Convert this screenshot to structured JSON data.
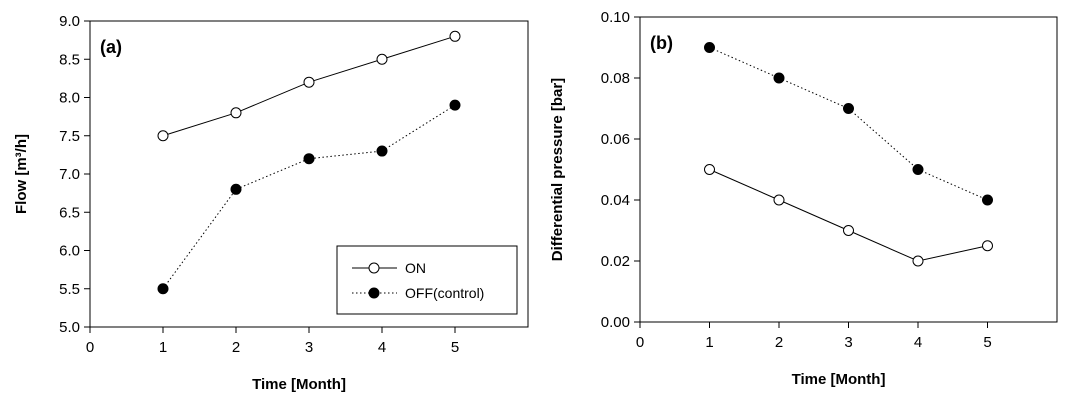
{
  "chart_data": [
    {
      "type": "line",
      "panel_label": "(a)",
      "xlabel": "Time [Month]",
      "ylabel": "Flow [m³/h]",
      "xlim": [
        0,
        6
      ],
      "ylim": [
        5.0,
        9.0
      ],
      "x_ticks": [
        0,
        1,
        2,
        3,
        4,
        5
      ],
      "y_ticks": [
        5.0,
        5.5,
        6.0,
        6.5,
        7.0,
        7.5,
        8.0,
        8.5,
        9.0
      ],
      "y_tick_labels": [
        "5.0",
        "5.5",
        "6.0",
        "6.5",
        "7.0",
        "7.5",
        "8.0",
        "8.5",
        "9.0"
      ],
      "grid": false,
      "legend": "bottom-right",
      "x": [
        1,
        2,
        3,
        4,
        5
      ],
      "series": [
        {
          "name": "ON",
          "values": [
            7.5,
            7.8,
            8.2,
            8.5,
            8.8
          ],
          "marker": "open-circle",
          "line": "solid"
        },
        {
          "name": "OFF(control)",
          "values": [
            5.5,
            6.8,
            7.2,
            7.3,
            7.9
          ],
          "marker": "filled-circle",
          "line": "dotted"
        }
      ]
    },
    {
      "type": "line",
      "panel_label": "(b)",
      "xlabel": "Time [Month]",
      "ylabel": "Differential pressure [bar]",
      "xlim": [
        0,
        6
      ],
      "ylim": [
        0.0,
        0.1
      ],
      "x_ticks": [
        0,
        1,
        2,
        3,
        4,
        5
      ],
      "y_ticks": [
        0.0,
        0.02,
        0.04,
        0.06,
        0.08,
        0.1
      ],
      "y_tick_labels": [
        "0.00",
        "0.02",
        "0.04",
        "0.06",
        "0.08",
        "0.10"
      ],
      "grid": false,
      "legend": "none",
      "x": [
        1,
        2,
        3,
        4,
        5
      ],
      "series": [
        {
          "values": [
            0.05,
            0.04,
            0.03,
            0.02,
            0.025
          ],
          "marker": "open-circle",
          "line": "solid"
        },
        {
          "values": [
            0.09,
            0.08,
            0.07,
            0.05,
            0.04
          ],
          "marker": "filled-circle",
          "line": "dotted"
        }
      ]
    }
  ]
}
